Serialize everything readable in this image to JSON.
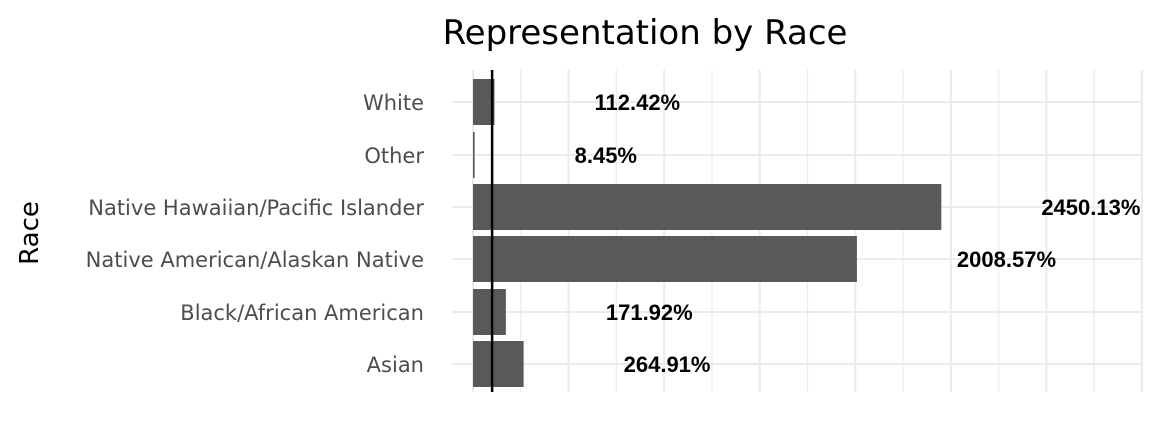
{
  "chart_data": {
    "type": "bar",
    "orientation": "horizontal",
    "title": "Representation by Race",
    "ylabel": "Race",
    "xlabel": "",
    "categories": [
      "White",
      "Other",
      "Native Hawaiian/Pacific Islander",
      "Native American/Alaskan Native",
      "Black/African American",
      "Asian"
    ],
    "values": [
      112.42,
      8.45,
      2450.13,
      2008.57,
      171.92,
      264.91
    ],
    "value_labels": [
      "112.42%",
      "8.45%",
      "2450.13%",
      "2008.57%",
      "171.92%",
      "264.91%"
    ],
    "xlim": [
      0,
      3500
    ],
    "reference_line": 100,
    "bar_color": "#595959",
    "grid": true,
    "x_tick_labels_visible": false
  }
}
